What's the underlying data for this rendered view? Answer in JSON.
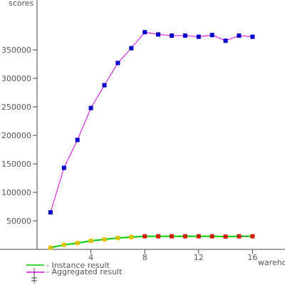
{
  "chart_data": {
    "type": "line",
    "ylabel": "scores",
    "xlabel": "warehouses",
    "x_ticks": [
      4,
      8,
      12,
      16
    ],
    "y_ticks": [
      50000,
      100000,
      150000,
      200000,
      250000,
      300000,
      350000
    ],
    "xlim": [
      0,
      18
    ],
    "ylim": [
      0,
      425000
    ],
    "legend_position": "bottom-left",
    "series": [
      {
        "name": "Instance result",
        "line_color": "#00cc00",
        "x": [
          1,
          2,
          3,
          4,
          5,
          6,
          7,
          8,
          9,
          10,
          11,
          12,
          13,
          14,
          15,
          16
        ],
        "values": [
          3000,
          8000,
          11000,
          15000,
          17500,
          20000,
          21500,
          23000,
          23000,
          23000,
          23000,
          23000,
          23000,
          22500,
          23000,
          23000
        ],
        "marker_colors": [
          "#e0c000",
          "#e0c000",
          "#e0c000",
          "#e0c000",
          "#e0c000",
          "#e0c000",
          "#e0c000",
          "#cc2200",
          "#cc2200",
          "#cc2200",
          "#cc2200",
          "#cc2200",
          "#cc2200",
          "#cc2200",
          "#cc2200",
          "#cc2200"
        ]
      },
      {
        "name": "Aggregated result",
        "line_color": "#dd00dd",
        "marker_color": "#0000cc",
        "x": [
          1,
          2,
          3,
          4,
          5,
          6,
          7,
          8,
          9,
          10,
          11,
          12,
          13,
          14,
          15,
          16
        ],
        "values": [
          65000,
          143000,
          192000,
          248000,
          288000,
          327000,
          353000,
          381000,
          377000,
          375000,
          375000,
          373000,
          376000,
          366000,
          375000,
          373000
        ]
      }
    ],
    "legend": [
      {
        "label": "- Instance result",
        "color": "#00cc00"
      },
      {
        "label": "- Aggregated result",
        "color": "#dd00dd"
      }
    ]
  }
}
